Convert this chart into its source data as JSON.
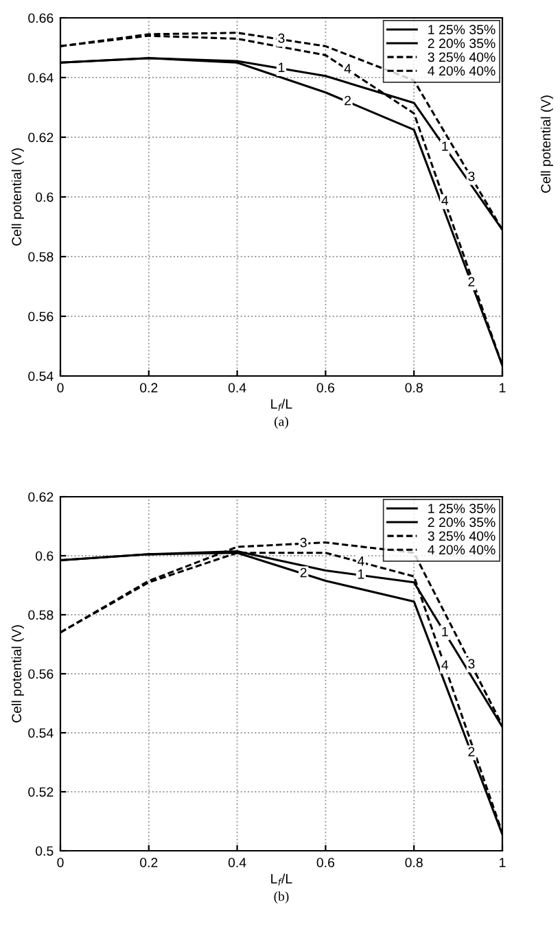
{
  "chart_data": [
    {
      "type": "line",
      "xlabel": "L$_{f}$/L",
      "ylabel": "Cell potential (V)",
      "x": [
        0,
        0.2,
        0.4,
        0.6,
        0.8,
        1
      ],
      "xlim": [
        0,
        1
      ],
      "xticks": [
        0,
        0.2,
        0.4,
        0.6,
        0.8,
        1
      ],
      "ylim": [
        0.54,
        0.66
      ],
      "yticks": [
        0.54,
        0.56,
        0.58,
        0.6,
        0.62,
        0.64,
        0.66
      ],
      "grid": true,
      "legend": "top right",
      "series": [
        {
          "name": "1 25% 35%",
          "color": "#000000",
          "line_style": "solid",
          "values": [
            0.645,
            0.6465,
            0.6455,
            0.6405,
            0.6315,
            0.589
          ]
        },
        {
          "name": "2 20% 35%",
          "color": "#000000",
          "line_style": "solid",
          "values": [
            0.645,
            0.6465,
            0.645,
            0.635,
            0.6225,
            0.5435
          ]
        },
        {
          "name": "3 25% 40%",
          "color": "#000000",
          "line_style": "dashed",
          "values": [
            0.6505,
            0.6545,
            0.655,
            0.6505,
            0.639,
            0.589
          ]
        },
        {
          "name": "4 20% 40%",
          "color": "#000000",
          "line_style": "dashed",
          "values": [
            0.6505,
            0.654,
            0.653,
            0.6475,
            0.628,
            0.5435
          ]
        }
      ],
      "annotations": [
        "(a)",
        "Cell potential (V)",
        {
          "text": "3",
          "x": 0.5,
          "y": 0.6528
        },
        {
          "text": "4",
          "x": 0.65,
          "y": 0.6426
        },
        {
          "text": "1",
          "x": 0.5,
          "y": 0.643
        },
        {
          "text": "2",
          "x": 0.65,
          "y": 0.6319
        },
        {
          "text": "3",
          "x": 0.93,
          "y": 0.6065
        },
        {
          "text": "1",
          "x": 0.87,
          "y": 0.6166
        },
        {
          "text": "4",
          "x": 0.87,
          "y": 0.5984
        },
        {
          "text": "2",
          "x": 0.93,
          "y": 0.5712
        }
      ]
    },
    {
      "type": "line",
      "xlabel": "L$_{f}$/L",
      "ylabel": "Cell potential (V)",
      "x": [
        0,
        0.2,
        0.4,
        0.6,
        0.8,
        1
      ],
      "xlim": [
        0,
        1
      ],
      "xticks": [
        0,
        0.2,
        0.4,
        0.6,
        0.8,
        1
      ],
      "ylim": [
        0.5,
        0.62
      ],
      "yticks": [
        0.5,
        0.52,
        0.54,
        0.56,
        0.58,
        0.6,
        0.62
      ],
      "grid": true,
      "legend": "top right",
      "series": [
        {
          "name": "1 25% 35%",
          "color": "#000000",
          "line_style": "solid",
          "values": [
            0.5985,
            0.6005,
            0.6015,
            0.595,
            0.591,
            0.542
          ]
        },
        {
          "name": "2 20% 35%",
          "color": "#000000",
          "line_style": "solid",
          "values": [
            0.5985,
            0.6005,
            0.601,
            0.5915,
            0.5845,
            0.5055
          ]
        },
        {
          "name": "3 25% 40%",
          "color": "#000000",
          "line_style": "dashed",
          "values": [
            0.574,
            0.5915,
            0.603,
            0.6045,
            0.601,
            0.5425
          ]
        },
        {
          "name": "4 20% 40%",
          "color": "#000000",
          "line_style": "dashed",
          "values": [
            0.574,
            0.591,
            0.601,
            0.601,
            0.593,
            0.506
          ]
        }
      ],
      "annotations": [
        "(b)",
        {
          "text": "3",
          "x": 0.55,
          "y": 0.6041
        },
        {
          "text": "4",
          "x": 0.68,
          "y": 0.5978
        },
        {
          "text": "1",
          "x": 0.68,
          "y": 0.5934
        },
        {
          "text": "2",
          "x": 0.55,
          "y": 0.5939
        },
        {
          "text": "3",
          "x": 0.93,
          "y": 0.563
        },
        {
          "text": "1",
          "x": 0.87,
          "y": 0.5739
        },
        {
          "text": "4",
          "x": 0.87,
          "y": 0.5626
        },
        {
          "text": "2",
          "x": 0.93,
          "y": 0.5332
        }
      ]
    }
  ]
}
